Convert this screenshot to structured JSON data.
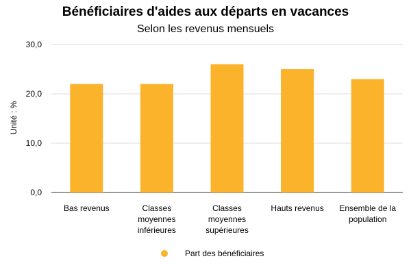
{
  "chart_data": {
    "type": "bar",
    "title": "Bénéficiaires d'aides aux départs en vacances",
    "subtitle": "Selon les revenus mensuels",
    "ylabel": "Unité : %",
    "xlabel": "",
    "categories": [
      [
        "Bas revenus"
      ],
      [
        "Classes",
        "moyennes",
        "inférieures"
      ],
      [
        "Classes",
        "moyennes",
        "supérieures"
      ],
      [
        "Hauts revenus"
      ],
      [
        "Ensemble de la",
        "population"
      ]
    ],
    "series": [
      {
        "name": "Part des bénéficiaires",
        "color": "#FBB32B",
        "values": [
          22,
          22,
          26,
          25,
          23
        ]
      }
    ],
    "ylim": [
      0,
      30
    ],
    "yticks": [
      0,
      10,
      20,
      30
    ],
    "ytick_labels": [
      "0,0",
      "10,0",
      "20,0",
      "30,0"
    ],
    "grid": true,
    "legend_position": "bottom"
  }
}
